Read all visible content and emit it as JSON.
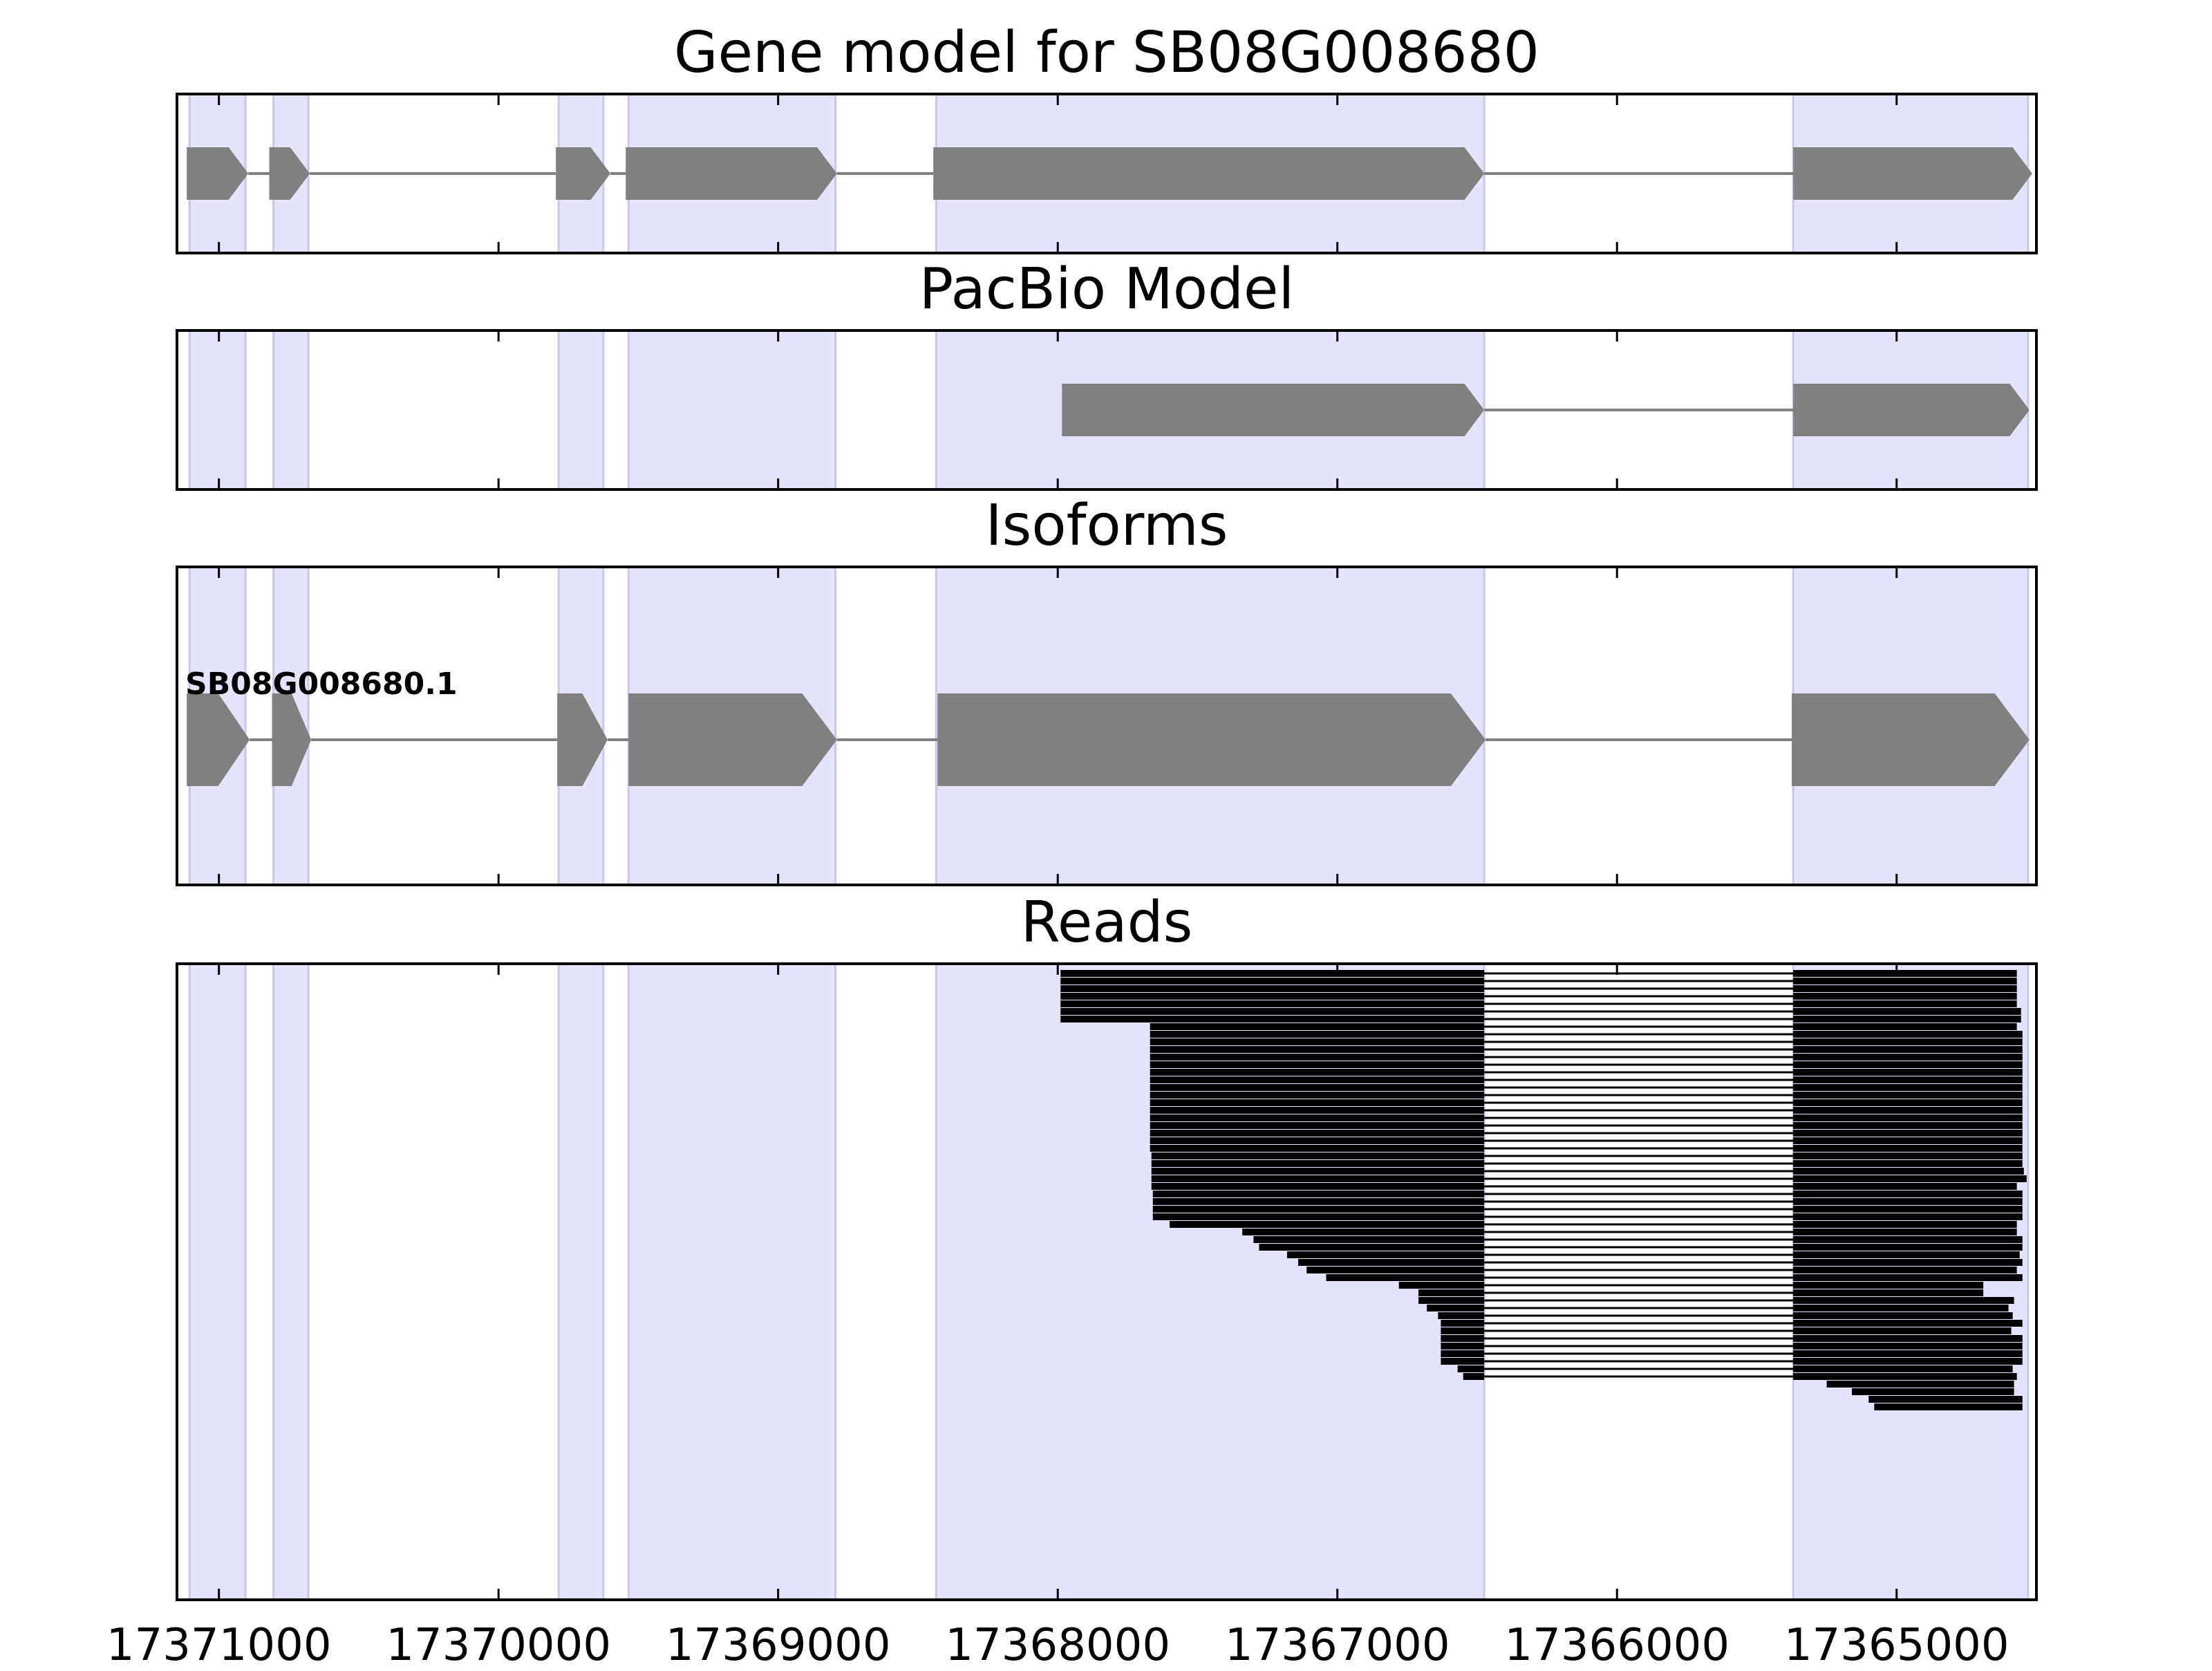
{
  "panels": {
    "gene_model": {
      "title": "Gene model for SB08G008680"
    },
    "pacbio": {
      "title": "PacBio Model"
    },
    "isoforms": {
      "title": "Isoforms",
      "isoform_label": "SB08G008680.1"
    },
    "reads": {
      "title": "Reads"
    }
  },
  "chart_data": {
    "type": "gene_track",
    "axis": {
      "orientation": "reversed",
      "xlim": [
        17371150,
        17364500
      ],
      "ticks": [
        17371000,
        17370000,
        17369000,
        17368000,
        17367000,
        17366000,
        17365000
      ],
      "tick_labels": [
        "17371000",
        "17370000",
        "17369000",
        "17368000",
        "17367000",
        "17366000",
        "17365000"
      ]
    },
    "colors": {
      "exon_shade": "#e3e3fb",
      "exon_shade_edge": "#c8c8ee",
      "feature": "#808080",
      "read": "#000000",
      "intron_line": "#808080"
    },
    "exon_shading": [
      [
        17371105,
        17370905
      ],
      [
        17370805,
        17370680
      ],
      [
        17369785,
        17369625
      ],
      [
        17369535,
        17368795
      ],
      [
        17368435,
        17366475
      ],
      [
        17365370,
        17364530
      ]
    ],
    "gene_model_exons": [
      [
        17371115,
        17370895
      ],
      [
        17370820,
        17370675
      ],
      [
        17369795,
        17369600
      ],
      [
        17369545,
        17368790
      ],
      [
        17368445,
        17366475
      ],
      [
        17365370,
        17364515
      ]
    ],
    "pacbio_exons": [
      [
        17367985,
        17366475
      ],
      [
        17365370,
        17364525
      ]
    ],
    "isoform_exons": [
      [
        17371115,
        17370890
      ],
      [
        17370810,
        17370670
      ],
      [
        17369790,
        17369610
      ],
      [
        17369535,
        17368790
      ],
      [
        17368430,
        17366470
      ],
      [
        17365375,
        17364525
      ]
    ],
    "reads": [
      [
        17367990,
        17364570
      ],
      [
        17367990,
        17364570
      ],
      [
        17367990,
        17364570
      ],
      [
        17367990,
        17364570
      ],
      [
        17367990,
        17364570
      ],
      [
        17367990,
        17364555
      ],
      [
        17367990,
        17364555
      ],
      [
        17367670,
        17364570
      ],
      [
        17367670,
        17364550
      ],
      [
        17367670,
        17364550
      ],
      [
        17367670,
        17364550
      ],
      [
        17367670,
        17364550
      ],
      [
        17367670,
        17364550
      ],
      [
        17367670,
        17364550
      ],
      [
        17367670,
        17364550
      ],
      [
        17367670,
        17364550
      ],
      [
        17367670,
        17364550
      ],
      [
        17367670,
        17364550
      ],
      [
        17367670,
        17364550
      ],
      [
        17367670,
        17364550
      ],
      [
        17367670,
        17364550
      ],
      [
        17367670,
        17364550
      ],
      [
        17367670,
        17364550
      ],
      [
        17367670,
        17364550
      ],
      [
        17367665,
        17364550
      ],
      [
        17367665,
        17364550
      ],
      [
        17367665,
        17364545
      ],
      [
        17367665,
        17364535
      ],
      [
        17367665,
        17364570
      ],
      [
        17367660,
        17364550
      ],
      [
        17367660,
        17364550
      ],
      [
        17367660,
        17364550
      ],
      [
        17367660,
        17364550
      ],
      [
        17367600,
        17364570
      ],
      [
        17367340,
        17364570
      ],
      [
        17367300,
        17364550
      ],
      [
        17367280,
        17364550
      ],
      [
        17367180,
        17364560
      ],
      [
        17367140,
        17364550
      ],
      [
        17367110,
        17364570
      ],
      [
        17367040,
        17364550
      ],
      [
        17366780,
        17364690
      ],
      [
        17366710,
        17364690
      ],
      [
        17366710,
        17364580
      ],
      [
        17366680,
        17364600
      ],
      [
        17366640,
        17364585
      ],
      [
        17366630,
        17364550
      ],
      [
        17366630,
        17364590
      ],
      [
        17366630,
        17364550
      ],
      [
        17366630,
        17364550
      ],
      [
        17366630,
        17364550
      ],
      [
        17366630,
        17364550
      ],
      [
        17366570,
        17364585
      ],
      [
        17366550,
        17364570
      ],
      [
        17365250,
        17364580
      ],
      [
        17365160,
        17364580
      ],
      [
        17365100,
        17364550
      ],
      [
        17365080,
        17364550
      ]
    ]
  }
}
